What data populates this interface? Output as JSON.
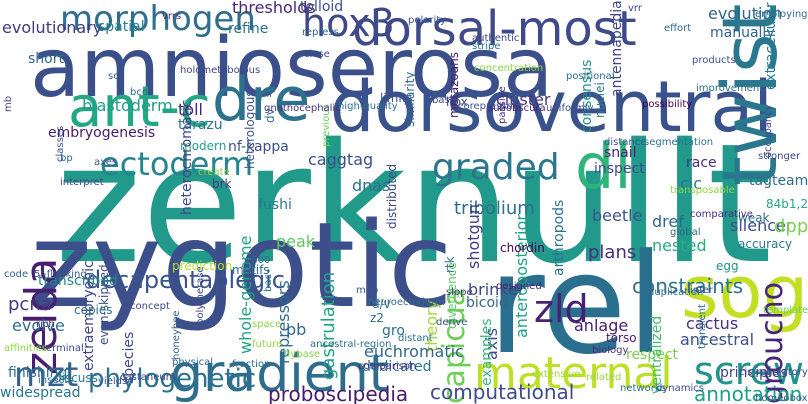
{
  "words": [
    {
      "text": "amnioserosa",
      "color": "#3b4f8a"
    },
    {
      "text": "zerknullt",
      "color": "#229a8b"
    },
    {
      "text": "zygotic",
      "color": "#3c4f8a"
    },
    {
      "text": "rel",
      "color": "#2b6f8e"
    },
    {
      "text": "dorsoventral",
      "color": "#3a528b"
    },
    {
      "text": "dorsal-most",
      "color": "#3e4a89"
    },
    {
      "text": "twist",
      "color": "#2a788e"
    },
    {
      "text": "ant-c",
      "color": "#22a884"
    },
    {
      "text": "dre",
      "color": "#2d718e"
    },
    {
      "text": "dl",
      "color": "#2fb47c"
    },
    {
      "text": "zelda",
      "color": "#481f70"
    },
    {
      "text": "sog",
      "color": "#c2df23"
    },
    {
      "text": "maternal",
      "color": "#bddf26"
    },
    {
      "text": "gradient",
      "color": "#2f6c8e"
    },
    {
      "text": "graded",
      "color": "#2b758e"
    },
    {
      "text": "ectoderm",
      "color": "#25848e"
    },
    {
      "text": "morphogen",
      "color": "#2e6e8e"
    },
    {
      "text": "hox3",
      "color": "#3f4889"
    },
    {
      "text": "zld",
      "color": "#482173"
    },
    {
      "text": "mzt",
      "color": "#34608d"
    },
    {
      "text": "screw",
      "color": "#20938c"
    },
    {
      "text": "decapentaplegic",
      "color": "#3a538b"
    },
    {
      "text": "phylogenetic",
      "color": "#2c728e"
    },
    {
      "text": "groucho",
      "color": "#482576"
    },
    {
      "text": "capicua",
      "color": "#6ece58"
    },
    {
      "text": "annotation",
      "color": "#1fa088"
    },
    {
      "text": "proboscipedia",
      "color": "#481a6c"
    },
    {
      "text": "computational",
      "color": "#3e4c8a"
    },
    {
      "text": "evolution",
      "color": "#31668e"
    },
    {
      "text": "manually",
      "color": "#33638d"
    },
    {
      "text": "tribolium",
      "color": "#2d708e"
    },
    {
      "text": "cic",
      "color": "#2a778e"
    },
    {
      "text": "race",
      "color": "#472f7d"
    },
    {
      "text": "tagteam",
      "color": "#2e6f8e"
    },
    {
      "text": "constraints",
      "color": "#2c728e"
    },
    {
      "text": "brinker",
      "color": "#3e4989"
    },
    {
      "text": "cactus",
      "color": "#46337e"
    },
    {
      "text": "ancestral",
      "color": "#3b518b"
    },
    {
      "text": "principles",
      "color": "#404688"
    },
    {
      "text": "nested",
      "color": "#27ad81"
    },
    {
      "text": "dref",
      "color": "#31678e"
    },
    {
      "text": "beetle",
      "color": "#3b528b"
    },
    {
      "text": "plans",
      "color": "#46307e"
    },
    {
      "text": "silencer",
      "color": "#3d4d8a"
    },
    {
      "text": "accuracy",
      "color": "#2a788e"
    },
    {
      "text": "dpp",
      "color": "#7ad151"
    },
    {
      "text": "weak",
      "color": "#2e6d8e"
    },
    {
      "text": "egg",
      "color": "#21918c"
    },
    {
      "text": "84b1,2",
      "color": "#22a884"
    },
    {
      "text": "pcna",
      "color": "#443983"
    },
    {
      "text": "evolve",
      "color": "#2e6e8e"
    },
    {
      "text": "caggtag",
      "color": "#3c4f8a"
    },
    {
      "text": "dnas",
      "color": "#2d708e"
    },
    {
      "text": "peak",
      "color": "#5ec962"
    },
    {
      "text": "fushi",
      "color": "#2a788e"
    },
    {
      "text": "brk",
      "color": "#453882"
    },
    {
      "text": "thresholds",
      "color": "#482677"
    },
    {
      "text": "tolloid",
      "color": "#3b528b"
    },
    {
      "text": "evolutionary",
      "color": "#44397f"
    },
    {
      "text": "spatial",
      "color": "#26828e"
    },
    {
      "text": "refine",
      "color": "#2c728e"
    },
    {
      "text": "nuclei",
      "color": "#2a788e"
    },
    {
      "text": "blastoderm",
      "color": "#1f9e89"
    },
    {
      "text": "toll",
      "color": "#482475"
    },
    {
      "text": "nf-kappa",
      "color": "#3b528b"
    },
    {
      "text": "tarazu",
      "color": "#2c728e"
    },
    {
      "text": "modern",
      "color": "#20a386"
    },
    {
      "text": "cluster",
      "color": "#453781"
    },
    {
      "text": "hox",
      "color": "#3e4a89"
    },
    {
      "text": "limits",
      "color": "#3d4e8a"
    },
    {
      "text": "consensus",
      "color": "#21918c"
    },
    {
      "text": "short",
      "color": "#30698e"
    },
    {
      "text": "metazoans",
      "color": "#481d6f"
    },
    {
      "text": "antennapedia",
      "color": "#3f4788"
    },
    {
      "text": "extracellular",
      "color": "#277f8e"
    },
    {
      "text": "snail",
      "color": "#481f70"
    },
    {
      "text": "inspect",
      "color": "#3f4889"
    },
    {
      "text": "anteroposterior",
      "color": "#1fa188"
    },
    {
      "text": "arthropods",
      "color": "#2c718e"
    },
    {
      "text": "shotgun",
      "color": "#443a83"
    },
    {
      "text": "extraembryonic",
      "color": "#404588"
    },
    {
      "text": "even-skipped",
      "color": "#3c4f8a"
    },
    {
      "text": "transcribed",
      "color": "#25848e"
    },
    {
      "text": "whole-genome",
      "color": "#20a386"
    },
    {
      "text": "repressors",
      "color": "#2f6b8e"
    },
    {
      "text": "prediction",
      "color": "#b5de2b"
    },
    {
      "text": "motifs",
      "color": "#2e6f8e"
    },
    {
      "text": "theory",
      "color": "#a2da37"
    },
    {
      "text": "divergence",
      "color": "#5ac864"
    },
    {
      "text": "bicoid",
      "color": "#31678e"
    },
    {
      "text": "gastrulation",
      "color": "#20a486"
    },
    {
      "text": "pb",
      "color": "#306a8e"
    },
    {
      "text": "gro",
      "color": "#2c728e"
    },
    {
      "text": "z2",
      "color": "#2e6d8e"
    },
    {
      "text": "d/v",
      "color": "#2c718e"
    },
    {
      "text": "axis",
      "color": "#3e4a89"
    },
    {
      "text": "anlage",
      "color": "#482071"
    },
    {
      "text": "torso",
      "color": "#481b6d"
    },
    {
      "text": "respect",
      "color": "#7ad151"
    },
    {
      "text": "euchromatic",
      "color": "#32658e"
    },
    {
      "text": "dedicated",
      "color": "#2c738e"
    },
    {
      "text": "examples",
      "color": "#35b779"
    },
    {
      "text": "ventralized",
      "color": "#44bf70"
    },
    {
      "text": "species",
      "color": "#3e4a89"
    },
    {
      "text": "widespread",
      "color": "#2a778e"
    },
    {
      "text": "finishing",
      "color": "#2c738e"
    },
    {
      "text": "discuss",
      "color": "#2a788e"
    },
    {
      "text": "heterochromatic",
      "color": "#3f4788"
    },
    {
      "text": "heterologous",
      "color": "#3b528b"
    },
    {
      "text": "dv",
      "color": "#2d708e"
    },
    {
      "text": "similarity",
      "color": "#30698e"
    },
    {
      "text": "passive",
      "color": "#46307e"
    },
    {
      "text": "rtk",
      "color": "#2e6e8e"
    },
    {
      "text": "distributed",
      "color": "#3f4788"
    },
    {
      "text": "dif",
      "color": "#2d708e"
    },
    {
      "text": "chordin",
      "color": "#440154"
    },
    {
      "text": "slope",
      "color": "#443983"
    },
    {
      "text": "designed",
      "color": "#482475"
    },
    {
      "text": "derive",
      "color": "#3b528b"
    },
    {
      "text": "biology",
      "color": "#472f7d"
    },
    {
      "text": "dynamics",
      "color": "#3e4a89"
    },
    {
      "text": "networks",
      "color": "#2c728e"
    },
    {
      "text": "homeobox",
      "color": "#355f8d"
    },
    {
      "text": "extensive",
      "color": "#a0da39"
    },
    {
      "text": "related",
      "color": "#93d741"
    },
    {
      "text": "neuroectoderm",
      "color": "#306a8e"
    },
    {
      "text": "distant",
      "color": "#2c738e"
    },
    {
      "text": "comparison",
      "color": "#46307e"
    },
    {
      "text": "flybase",
      "color": "#86d549"
    },
    {
      "text": "fraction",
      "color": "#2e6f8e"
    },
    {
      "text": "physical",
      "color": "#31688e"
    },
    {
      "text": "castaneum",
      "color": "#404588"
    },
    {
      "text": "yields",
      "color": "#3b528b"
    },
    {
      "text": "terminal",
      "color": "#3e4a89"
    },
    {
      "text": "insects",
      "color": "#2f6c8e"
    },
    {
      "text": "rich",
      "color": "#482878"
    },
    {
      "text": "copies",
      "color": "#2c718e"
    },
    {
      "text": "affinities",
      "color": "#8fd744"
    },
    {
      "text": "code",
      "color": "#33638d"
    },
    {
      "text": "embryogenesis",
      "color": "#481a6c"
    },
    {
      "text": "classes",
      "color": "#3c4f8a"
    },
    {
      "text": "axes",
      "color": "#3b528b"
    },
    {
      "text": "bp",
      "color": "#31678e"
    },
    {
      "text": "interpret",
      "color": "#3e4a89"
    },
    {
      "text": "create",
      "color": "#86d549"
    },
    {
      "text": "previous",
      "color": "#6ece58"
    },
    {
      "text": "holometabolous",
      "color": "#3f4788"
    },
    {
      "text": "scr",
      "color": "#3b528b"
    },
    {
      "text": "bcd",
      "color": "#2e6e8e"
    },
    {
      "text": "mb",
      "color": "#3e4a89"
    },
    {
      "text": "gnathocephalic",
      "color": "#46327e"
    },
    {
      "text": "high-quality",
      "color": "#2c738e"
    },
    {
      "text": "corepressors",
      "color": "#3b528b"
    },
    {
      "text": "subobscura",
      "color": "#481f70"
    },
    {
      "text": "uniformly",
      "color": "#3e4a89"
    },
    {
      "text": "possibility",
      "color": "#440154"
    },
    {
      "text": "improvement",
      "color": "#2d708e"
    },
    {
      "text": "occupancy",
      "color": "#3f4788"
    },
    {
      "text": "products",
      "color": "#3b528b"
    },
    {
      "text": "employing",
      "color": "#306a8e"
    },
    {
      "text": "effort",
      "color": "#2e6e8e"
    },
    {
      "text": "stripe",
      "color": "#2c738e"
    },
    {
      "text": "authentic",
      "color": "#3e4a89"
    },
    {
      "text": "concentration",
      "color": "#8fd744"
    },
    {
      "text": "positional",
      "color": "#2c718e"
    },
    {
      "text": "basis",
      "color": "#3f4788"
    },
    {
      "text": "vrrs",
      "color": "#482878"
    },
    {
      "text": "polarity",
      "color": "#3b528b"
    },
    {
      "text": "repress",
      "color": "#31688e"
    },
    {
      "text": "close",
      "color": "#3e4a89"
    },
    {
      "text": "distance",
      "color": "#3b528b"
    },
    {
      "text": "segmentation",
      "color": "#2c718e"
    },
    {
      "text": "stronger",
      "color": "#404588"
    },
    {
      "text": "comparative",
      "color": "#46307e"
    },
    {
      "text": "global",
      "color": "#33638d"
    },
    {
      "text": "infer",
      "color": "#3b528b"
    },
    {
      "text": "transient",
      "color": "#2e6f8e"
    },
    {
      "text": "template",
      "color": "#6ece58"
    },
    {
      "text": "duplication",
      "color": "#31678e"
    },
    {
      "text": "cis-regulatory",
      "color": "#3e4a89"
    },
    {
      "text": "space",
      "color": "#8fd744"
    },
    {
      "text": "ancestral-region",
      "color": "#2c728e"
    },
    {
      "text": "future",
      "color": "#8fd744"
    },
    {
      "text": "map",
      "color": "#3b528b"
    },
    {
      "text": "z600",
      "color": "#2e6d8e"
    },
    {
      "text": "concept",
      "color": "#3f4788"
    },
    {
      "text": "honeybee",
      "color": "#33638d"
    },
    {
      "text": "polymerase",
      "color": "#3e4a89"
    },
    {
      "text": "5'-flanking",
      "color": "#3b528b"
    },
    {
      "text": "bac",
      "color": "#2e6e8e"
    },
    {
      "text": "transposable",
      "color": "#8fd744"
    },
    {
      "text": "vrr",
      "color": "#3f4788"
    },
    {
      "text": "replication-related",
      "color": "#2c718e"
    }
  ]
}
